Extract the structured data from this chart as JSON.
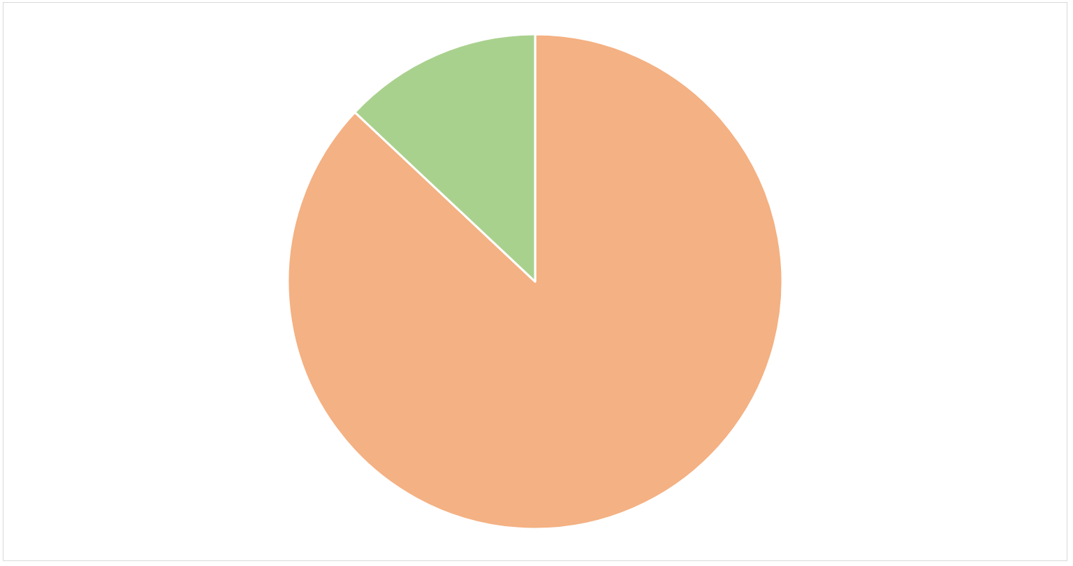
{
  "chart_data": {
    "type": "pie",
    "categories": [
      null,
      null
    ],
    "values": [
      87,
      13
    ],
    "colors": [
      "#f4b183",
      "#a9d18e"
    ]
  }
}
